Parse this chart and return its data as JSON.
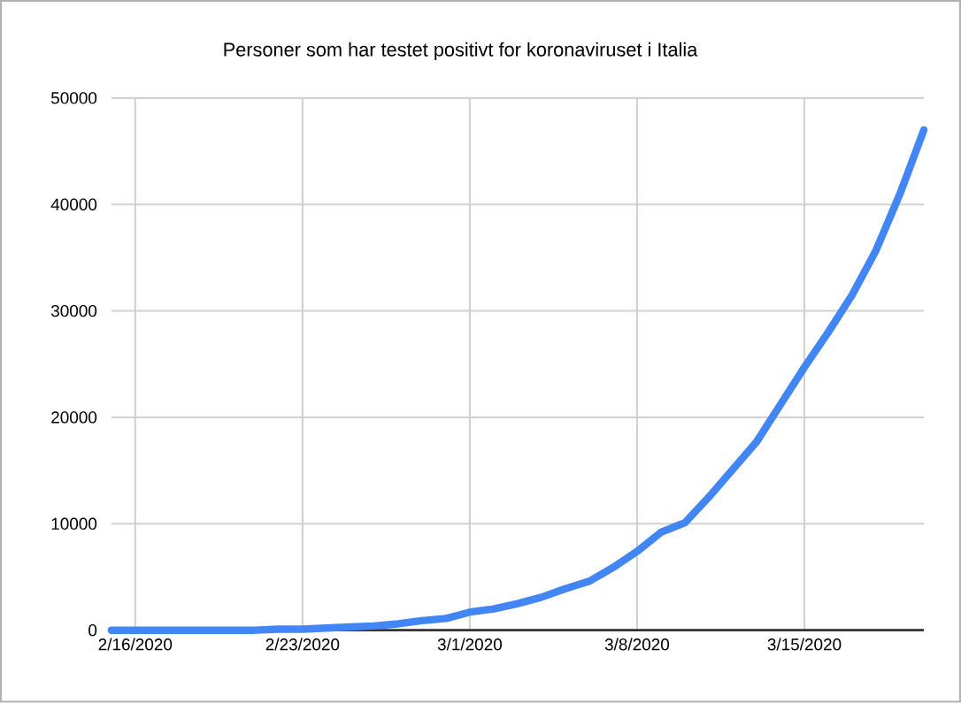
{
  "chart_data": {
    "type": "line",
    "title": "Personer som har testet positivt for koronaviruset i Italia",
    "x": [
      "2020-02-15",
      "2020-02-16",
      "2020-02-17",
      "2020-02-18",
      "2020-02-19",
      "2020-02-20",
      "2020-02-21",
      "2020-02-22",
      "2020-02-23",
      "2020-02-24",
      "2020-02-25",
      "2020-02-26",
      "2020-02-27",
      "2020-02-28",
      "2020-02-29",
      "2020-03-01",
      "2020-03-02",
      "2020-03-03",
      "2020-03-04",
      "2020-03-05",
      "2020-03-06",
      "2020-03-07",
      "2020-03-08",
      "2020-03-09",
      "2020-03-10",
      "2020-03-11",
      "2020-03-12",
      "2020-03-13",
      "2020-03-14",
      "2020-03-15",
      "2020-03-16",
      "2020-03-17",
      "2020-03-18",
      "2020-03-19",
      "2020-03-20"
    ],
    "series": [
      {
        "color": "#4285f4",
        "values": [
          0,
          0,
          0,
          0,
          0,
          0,
          0,
          100,
          100,
          200,
          300,
          400,
          600,
          900,
          1100,
          1700,
          2000,
          2500,
          3100,
          3900,
          4600,
          5900,
          7400,
          9200,
          10100,
          12500,
          15100,
          17700,
          21200,
          24700,
          28000,
          31500,
          35700,
          41000,
          47000
        ]
      }
    ],
    "xlim": [
      "2020-02-15",
      "2020-03-20"
    ],
    "xticks": [
      {
        "value": "2020-02-16",
        "label": "2/16/2020"
      },
      {
        "value": "2020-02-23",
        "label": "2/23/2020"
      },
      {
        "value": "2020-03-01",
        "label": "3/1/2020"
      },
      {
        "value": "2020-03-08",
        "label": "3/8/2020"
      },
      {
        "value": "2020-03-15",
        "label": "3/15/2020"
      }
    ],
    "ylim": [
      0,
      50000
    ],
    "yticks": [
      0,
      10000,
      20000,
      30000,
      40000,
      50000
    ],
    "grid": true,
    "marker": "none",
    "line_style": "solid"
  }
}
